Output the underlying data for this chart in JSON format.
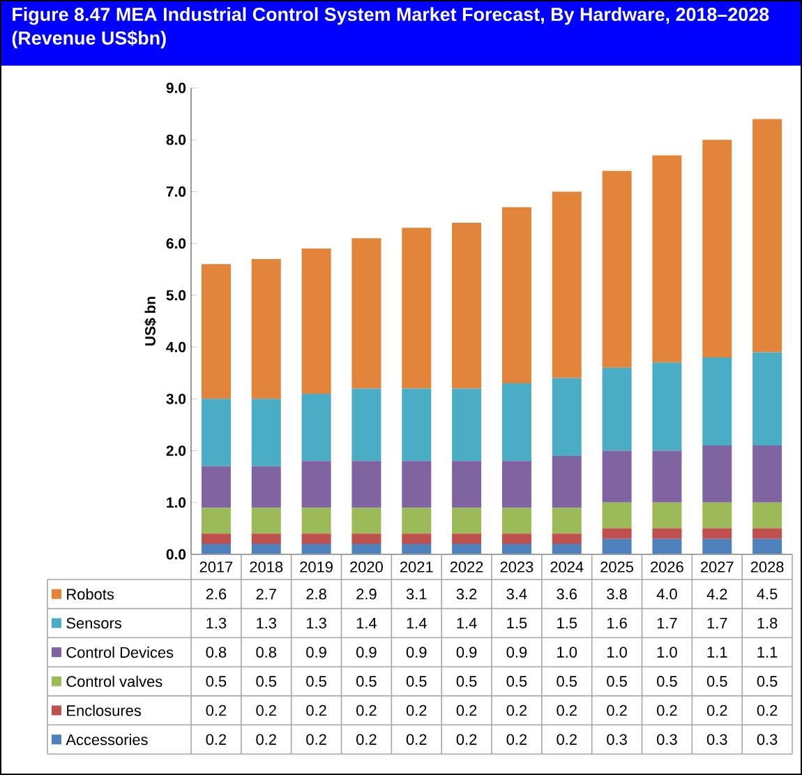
{
  "chart_data": {
    "type": "bar",
    "stacked": true,
    "title": "Figure 8.47 MEA Industrial Control System Market Forecast, By Hardware, 2018–2028 (Revenue US$bn)",
    "ylabel": "US$ bn",
    "categories": [
      "2017",
      "2018",
      "2019",
      "2020",
      "2021",
      "2022",
      "2023",
      "2024",
      "2025",
      "2026",
      "2027",
      "2028"
    ],
    "series": [
      {
        "name": "Accessories",
        "color": "#4f81bd",
        "values": [
          0.2,
          0.2,
          0.2,
          0.2,
          0.2,
          0.2,
          0.2,
          0.2,
          0.3,
          0.3,
          0.3,
          0.3
        ],
        "value_labels": [
          "0.2",
          "0.2",
          "0.2",
          "0.2",
          "0.2",
          "0.2",
          "0.2",
          "0.2",
          "0.3",
          "0.3",
          "0.3",
          "0.3"
        ]
      },
      {
        "name": "Enclosures",
        "color": "#c0504d",
        "values": [
          0.2,
          0.2,
          0.2,
          0.2,
          0.2,
          0.2,
          0.2,
          0.2,
          0.2,
          0.2,
          0.2,
          0.2
        ],
        "value_labels": [
          "0.2",
          "0.2",
          "0.2",
          "0.2",
          "0.2",
          "0.2",
          "0.2",
          "0.2",
          "0.2",
          "0.2",
          "0.2",
          "0.2"
        ]
      },
      {
        "name": "Control valves",
        "color": "#9bbb59",
        "values": [
          0.5,
          0.5,
          0.5,
          0.5,
          0.5,
          0.5,
          0.5,
          0.5,
          0.5,
          0.5,
          0.5,
          0.5
        ],
        "value_labels": [
          "0.5",
          "0.5",
          "0.5",
          "0.5",
          "0.5",
          "0.5",
          "0.5",
          "0.5",
          "0.5",
          "0.5",
          "0.5",
          "0.5"
        ]
      },
      {
        "name": "Control Devices",
        "color": "#8064a2",
        "values": [
          0.8,
          0.8,
          0.9,
          0.9,
          0.9,
          0.9,
          0.9,
          1.0,
          1.0,
          1.0,
          1.1,
          1.1
        ],
        "value_labels": [
          "0.8",
          "0.8",
          "0.9",
          "0.9",
          "0.9",
          "0.9",
          "0.9",
          "1.0",
          "1.0",
          "1.0",
          "1.1",
          "1.1"
        ]
      },
      {
        "name": "Sensors",
        "color": "#4bacc6",
        "values": [
          1.3,
          1.3,
          1.3,
          1.4,
          1.4,
          1.4,
          1.5,
          1.5,
          1.6,
          1.7,
          1.7,
          1.8
        ],
        "value_labels": [
          "1.3",
          "1.3",
          "1.3",
          "1.4",
          "1.4",
          "1.4",
          "1.5",
          "1.5",
          "1.6",
          "1.7",
          "1.7",
          "1.8"
        ]
      },
      {
        "name": "Robots",
        "color": "#e2853a",
        "values": [
          2.6,
          2.7,
          2.8,
          2.9,
          3.1,
          3.2,
          3.4,
          3.6,
          3.8,
          4.0,
          4.2,
          4.5
        ],
        "value_labels": [
          "2.6",
          "2.7",
          "2.8",
          "2.9",
          "3.1",
          "3.2",
          "3.4",
          "3.6",
          "3.8",
          "4.0",
          "4.2",
          "4.5"
        ]
      }
    ],
    "ylim": [
      0,
      9
    ],
    "yticks": [
      {
        "value": 0,
        "label": "0.0"
      },
      {
        "value": 1,
        "label": "1.0"
      },
      {
        "value": 2,
        "label": "2.0"
      },
      {
        "value": 3,
        "label": "3.0"
      },
      {
        "value": 4,
        "label": "4.0"
      },
      {
        "value": 5,
        "label": "5.0"
      },
      {
        "value": 6,
        "label": "6.0"
      },
      {
        "value": 7,
        "label": "7.0"
      },
      {
        "value": 8,
        "label": "8.0"
      },
      {
        "value": 9,
        "label": "9.0"
      }
    ],
    "legend": "bottom"
  }
}
